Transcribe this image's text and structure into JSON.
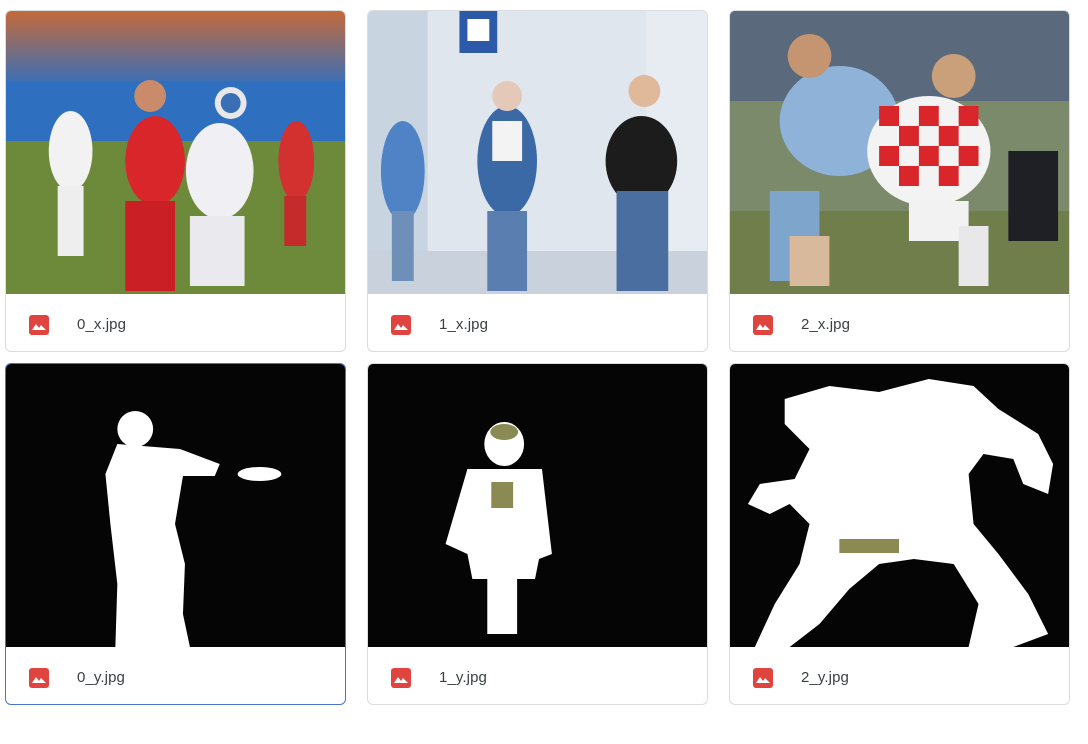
{
  "files": [
    {
      "name": "0_x.jpg",
      "kind": "photo-soccer-swiss"
    },
    {
      "name": "1_x.jpg",
      "kind": "photo-street"
    },
    {
      "name": "2_x.jpg",
      "kind": "photo-soccer-croatia"
    },
    {
      "name": "0_y.jpg",
      "kind": "mask"
    },
    {
      "name": "1_y.jpg",
      "kind": "mask"
    },
    {
      "name": "2_y.jpg",
      "kind": "mask"
    }
  ],
  "icon": {
    "name": "image-file-icon",
    "color": "#e0443e"
  },
  "selected_index": 3
}
